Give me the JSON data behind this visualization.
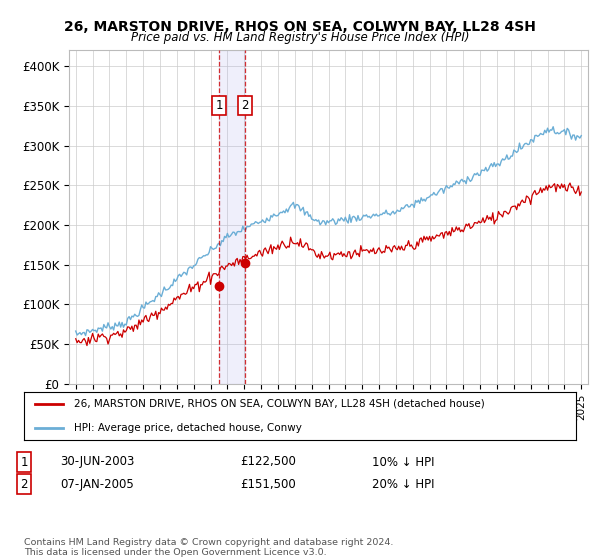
{
  "title": "26, MARSTON DRIVE, RHOS ON SEA, COLWYN BAY, LL28 4SH",
  "subtitle": "Price paid vs. HM Land Registry's House Price Index (HPI)",
  "ylim": [
    0,
    420000
  ],
  "yticks": [
    0,
    50000,
    100000,
    150000,
    200000,
    250000,
    300000,
    350000,
    400000
  ],
  "ytick_labels": [
    "£0",
    "£50K",
    "£100K",
    "£150K",
    "£200K",
    "£250K",
    "£300K",
    "£350K",
    "£400K"
  ],
  "legend_line1": "26, MARSTON DRIVE, RHOS ON SEA, COLWYN BAY, LL28 4SH (detached house)",
  "legend_line2": "HPI: Average price, detached house, Conwy",
  "transaction1_date": "30-JUN-2003",
  "transaction1_price": "£122,500",
  "transaction1_hpi": "10% ↓ HPI",
  "transaction2_date": "07-JAN-2005",
  "transaction2_price": "£151,500",
  "transaction2_hpi": "20% ↓ HPI",
  "copyright": "Contains HM Land Registry data © Crown copyright and database right 2024.\nThis data is licensed under the Open Government Licence v3.0.",
  "hpi_color": "#6baed6",
  "price_color": "#cc0000",
  "marker1_x": 2003.5,
  "marker2_x": 2005.04,
  "marker1_y": 122500,
  "marker2_y": 151500,
  "vline1_x": 2003.5,
  "vline2_x": 2005.04,
  "background_color": "#ffffff",
  "grid_color": "#cccccc",
  "xlim_left": 1994.6,
  "xlim_right": 2025.4
}
